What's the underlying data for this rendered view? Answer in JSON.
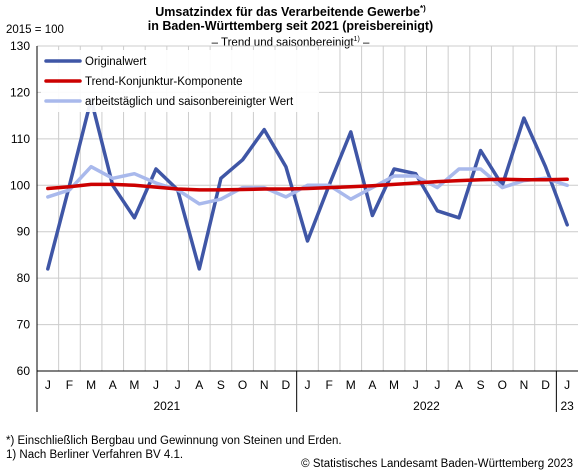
{
  "header": {
    "title_line1": "Umsatzindex für das Verarbeitende Gewerbe",
    "title_line1_marker": "*)",
    "title_line2": "in Baden-Württemberg seit 2021 (preisbereinigt)",
    "subtitle_prefix": "– Trend und saisonbereinigt",
    "subtitle_marker": "1)",
    "subtitle_suffix": " –"
  },
  "y_unit_label": "2015 = 100",
  "footnotes": {
    "note1": "*) Einschließlich Bergbau und Gewinnung von Steinen und Erden.",
    "note2": "1) Nach Berliner Verfahren BV 4.1."
  },
  "copyright": "© Statistisches Landesamt Baden-Württemberg 2023",
  "colors": {
    "original": "#3f56a6",
    "trend": "#cc0000",
    "adjusted": "#a9b9ec",
    "grid": "#cccccc"
  },
  "chart_data": {
    "type": "line",
    "x": [
      "J",
      "F",
      "M",
      "A",
      "M",
      "J",
      "J",
      "A",
      "S",
      "O",
      "N",
      "D",
      "J",
      "F",
      "M",
      "A",
      "M",
      "J",
      "J",
      "A",
      "S",
      "O",
      "N",
      "D",
      "J"
    ],
    "year_labels": [
      "2021",
      "2022",
      "23"
    ],
    "ylim": [
      60,
      130
    ],
    "yticks": [
      60,
      70,
      80,
      90,
      100,
      110,
      120,
      130
    ],
    "grid": true,
    "legend_placement": "top-left",
    "series": [
      {
        "name": "Originalwert",
        "color": "#3f56a6",
        "values": [
          82.0,
          100.0,
          118.5,
          100.0,
          93.0,
          103.5,
          99.0,
          82.0,
          101.5,
          105.5,
          112.0,
          104.0,
          88.0,
          100.0,
          111.5,
          93.5,
          103.5,
          102.5,
          94.5,
          93.0,
          107.5,
          100.0,
          114.5,
          104.0,
          91.5
        ]
      },
      {
        "name": "Trend-Konjunktur-Komponente",
        "color": "#cc0000",
        "values": [
          99.3,
          99.7,
          100.2,
          100.2,
          100.0,
          99.6,
          99.2,
          99.0,
          99.0,
          99.1,
          99.2,
          99.2,
          99.3,
          99.5,
          99.7,
          99.9,
          100.2,
          100.5,
          100.8,
          101.0,
          101.2,
          101.3,
          101.2,
          101.2,
          101.3
        ]
      },
      {
        "name": "arbeitstäglich und saisonbereinigter Wert",
        "color": "#a9b9ec",
        "values": [
          97.5,
          99.0,
          104.0,
          101.5,
          102.5,
          100.5,
          99.0,
          96.0,
          97.0,
          99.5,
          99.5,
          97.5,
          100.0,
          100.0,
          97.0,
          99.5,
          102.0,
          102.0,
          99.5,
          103.5,
          103.5,
          99.5,
          101.0,
          101.5,
          100.0
        ]
      }
    ]
  }
}
